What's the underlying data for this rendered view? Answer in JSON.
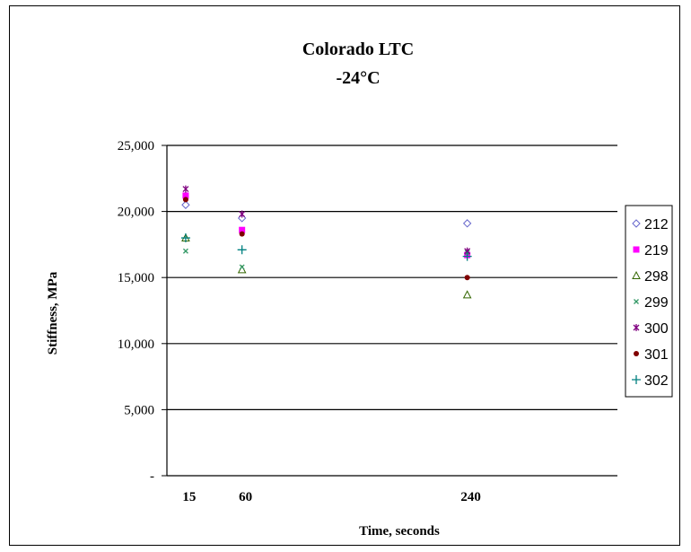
{
  "chart_data": {
    "type": "scatter",
    "title": "Colorado LTC",
    "subtitle": "-24°C",
    "xlabel": "Time, seconds",
    "ylabel": "Stiffness, MPa",
    "x_categories": [
      "15",
      "60",
      "240"
    ],
    "x_values": [
      15,
      60,
      240
    ],
    "xlim": [
      0,
      360
    ],
    "ylim": [
      0,
      25000
    ],
    "y_ticks": [
      0,
      5000,
      10000,
      15000,
      20000,
      25000
    ],
    "y_tick_labels": [
      "-",
      "5,000",
      "10,000",
      "15,000",
      "20,000",
      "25,000"
    ],
    "grid": true,
    "legend_position": "right",
    "series": [
      {
        "name": "212",
        "marker": "diamond-open",
        "color": "#6666cc",
        "x": [
          15,
          60,
          240
        ],
        "y": [
          20500,
          19500,
          19100
        ]
      },
      {
        "name": "219",
        "marker": "square",
        "color": "#ff00ff",
        "x": [
          15,
          60,
          240
        ],
        "y": [
          21200,
          18600,
          16700
        ]
      },
      {
        "name": "298",
        "marker": "triangle-open",
        "color": "#336600",
        "x": [
          15,
          60,
          240
        ],
        "y": [
          18000,
          15600,
          13700
        ]
      },
      {
        "name": "299",
        "marker": "x",
        "color": "#339966",
        "x": [
          15,
          60,
          240
        ],
        "y": [
          17000,
          15800,
          16900
        ]
      },
      {
        "name": "300",
        "marker": "star",
        "color": "#800080",
        "x": [
          15,
          60,
          240
        ],
        "y": [
          21700,
          19800,
          17000
        ]
      },
      {
        "name": "301",
        "marker": "circle",
        "color": "#800000",
        "x": [
          15,
          60,
          240
        ],
        "y": [
          20900,
          18300,
          15000
        ]
      },
      {
        "name": "302",
        "marker": "plus",
        "color": "#008080",
        "x": [
          15,
          60,
          240
        ],
        "y": [
          18000,
          17100,
          16600
        ]
      }
    ]
  }
}
